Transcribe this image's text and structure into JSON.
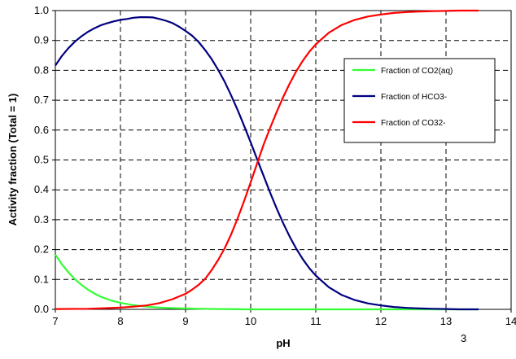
{
  "chart_data": {
    "type": "line",
    "xlabel": "pH",
    "ylabel": "Activity fraction (Total = 1)",
    "xlim": [
      7,
      14
    ],
    "ylim": [
      0,
      1
    ],
    "xticks": [
      7,
      8,
      9,
      10,
      11,
      12,
      13,
      14
    ],
    "yticks": [
      0,
      0.1,
      0.2,
      0.3,
      0.4,
      0.5,
      0.6,
      0.7,
      0.8,
      0.9,
      1.0
    ],
    "ytick_labels": [
      "0.0",
      "0.1",
      "0.2",
      "0.3",
      "0.4",
      "0.5",
      "0.6",
      "0.7",
      "0.8",
      "0.9",
      "1.0"
    ],
    "grid": true,
    "legend_position": "right",
    "corner_mark": "3",
    "series": [
      {
        "name": "Fraction of CO2(aq)",
        "color": "#33ff33",
        "x": [
          7.0,
          7.1,
          7.2,
          7.3,
          7.4,
          7.5,
          7.6,
          7.7,
          7.8,
          7.9,
          8.0,
          8.2,
          8.4,
          8.6,
          8.8,
          9.0,
          9.2,
          9.5,
          10.0,
          11.0,
          12.0,
          13.0,
          13.5
        ],
        "values": [
          0.183,
          0.151,
          0.124,
          0.101,
          0.082,
          0.066,
          0.053,
          0.042,
          0.034,
          0.027,
          0.022,
          0.014,
          0.009,
          0.006,
          0.004,
          0.003,
          0.002,
          0.001,
          0.0,
          0.0,
          0.0,
          0.0,
          0.0
        ]
      },
      {
        "name": "Fraction of HCO3-",
        "color": "#000080",
        "x": [
          7.0,
          7.1,
          7.2,
          7.3,
          7.4,
          7.5,
          7.6,
          7.7,
          7.8,
          7.9,
          8.0,
          8.1,
          8.2,
          8.3,
          8.4,
          8.5,
          8.6,
          8.7,
          8.8,
          8.9,
          9.0,
          9.1,
          9.2,
          9.3,
          9.4,
          9.5,
          9.6,
          9.7,
          9.8,
          9.9,
          10.0,
          10.1,
          10.2,
          10.3,
          10.4,
          10.5,
          10.6,
          10.7,
          10.8,
          10.9,
          11.0,
          11.2,
          11.4,
          11.6,
          11.8,
          12.0,
          12.2,
          12.4,
          12.6,
          12.8,
          13.0,
          13.2,
          13.5
        ],
        "values": [
          0.816,
          0.848,
          0.874,
          0.896,
          0.914,
          0.929,
          0.941,
          0.951,
          0.958,
          0.964,
          0.969,
          0.972,
          0.976,
          0.978,
          0.978,
          0.977,
          0.972,
          0.966,
          0.958,
          0.946,
          0.932,
          0.916,
          0.895,
          0.868,
          0.838,
          0.802,
          0.762,
          0.716,
          0.667,
          0.614,
          0.559,
          0.502,
          0.446,
          0.39,
          0.337,
          0.288,
          0.243,
          0.203,
          0.168,
          0.138,
          0.113,
          0.074,
          0.048,
          0.031,
          0.02,
          0.013,
          0.008,
          0.005,
          0.003,
          0.002,
          0.001,
          0.0,
          0.0
        ]
      },
      {
        "name": "Fraction of CO32-",
        "color": "#ff0000",
        "x": [
          7.0,
          7.5,
          7.8,
          8.0,
          8.2,
          8.4,
          8.6,
          8.8,
          9.0,
          9.1,
          9.2,
          9.3,
          9.4,
          9.5,
          9.6,
          9.7,
          9.8,
          9.9,
          10.0,
          10.1,
          10.2,
          10.3,
          10.4,
          10.5,
          10.6,
          10.7,
          10.8,
          10.9,
          11.0,
          11.2,
          11.4,
          11.6,
          11.8,
          12.0,
          12.2,
          12.4,
          12.6,
          12.8,
          13.0,
          13.2,
          13.5
        ],
        "values": [
          0.001,
          0.002,
          0.004,
          0.006,
          0.009,
          0.013,
          0.021,
          0.034,
          0.052,
          0.066,
          0.082,
          0.102,
          0.131,
          0.165,
          0.204,
          0.251,
          0.305,
          0.363,
          0.425,
          0.489,
          0.552,
          0.608,
          0.661,
          0.711,
          0.756,
          0.797,
          0.832,
          0.862,
          0.887,
          0.926,
          0.952,
          0.969,
          0.98,
          0.987,
          0.992,
          0.995,
          0.997,
          0.998,
          0.999,
          1.0,
          1.0
        ]
      }
    ]
  }
}
